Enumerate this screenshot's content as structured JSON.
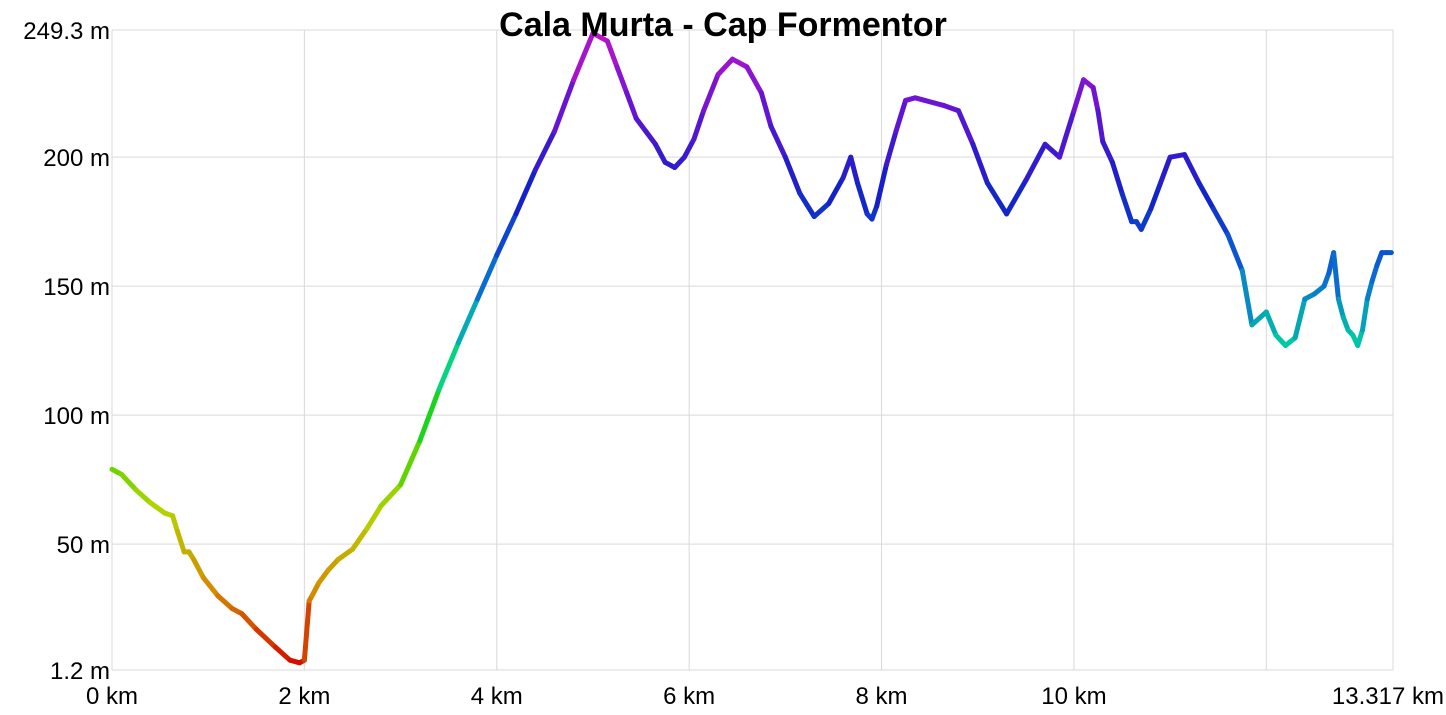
{
  "chart_data": {
    "type": "line",
    "title": "Cala Murta - Cap Formentor",
    "xlabel": "",
    "ylabel": "",
    "x_unit": "km",
    "y_unit": "m",
    "xlim": [
      0,
      13.317
    ],
    "ylim": [
      1.2,
      249.3
    ],
    "x_ticks": [
      {
        "value": 0,
        "label": "0 km"
      },
      {
        "value": 2,
        "label": "2 km"
      },
      {
        "value": 4,
        "label": "4 km"
      },
      {
        "value": 6,
        "label": "6 km"
      },
      {
        "value": 8,
        "label": "8 km"
      },
      {
        "value": 10,
        "label": "10 km"
      },
      {
        "value": 13.317,
        "label": "13.317 km"
      }
    ],
    "x_gridlines": [
      0,
      2,
      4,
      6,
      8,
      10,
      12,
      13.317
    ],
    "y_ticks": [
      {
        "value": 1.2,
        "label": "1.2 m"
      },
      {
        "value": 50,
        "label": "50 m"
      },
      {
        "value": 100,
        "label": "100 m"
      },
      {
        "value": 150,
        "label": "150 m"
      },
      {
        "value": 200,
        "label": "200 m"
      },
      {
        "value": 249.3,
        "label": "249.3 m"
      }
    ],
    "grid": true,
    "legend": "none",
    "color_by": "elevation",
    "color_scale": [
      "#d40000",
      "#d48a00",
      "#b4d400",
      "#22d400",
      "#00d4a0",
      "#0a64d4",
      "#1420c8",
      "#6414d4",
      "#c814c8"
    ],
    "series": [
      {
        "x": [
          0,
          0.1,
          0.25,
          0.4,
          0.55,
          0.63,
          0.68,
          0.75,
          0.8,
          0.85,
          0.95,
          1.1,
          1.25,
          1.35,
          1.5,
          1.7,
          1.85,
          1.95,
          2.0,
          2.05,
          2.08,
          2.15,
          2.25,
          2.35,
          2.5,
          2.65,
          2.8,
          3.0,
          3.2,
          3.4,
          3.6,
          3.8,
          4.0,
          4.2,
          4.4,
          4.6,
          4.8,
          5.0,
          5.15,
          5.25,
          5.35,
          5.45,
          5.55,
          5.65,
          5.75,
          5.85,
          5.95,
          6.05,
          6.15,
          6.3,
          6.45,
          6.6,
          6.75,
          6.85,
          7.0,
          7.15,
          7.3,
          7.45,
          7.6,
          7.68,
          7.75,
          7.85,
          7.9,
          7.95,
          8.05,
          8.15,
          8.25,
          8.35,
          8.45,
          8.55,
          8.65,
          8.8,
          8.95,
          9.1,
          9.3,
          9.5,
          9.7,
          9.85,
          10.0,
          10.1,
          10.2,
          10.25,
          10.3,
          10.4,
          10.5,
          10.6,
          10.65,
          10.7,
          10.8,
          10.9,
          11.0,
          11.15,
          11.3,
          11.45,
          11.6,
          11.75,
          11.85,
          12.0,
          12.1,
          12.2,
          12.3,
          12.4,
          12.5,
          12.6,
          12.65,
          12.7,
          12.75,
          12.8,
          12.85,
          12.9,
          12.95,
          13.0,
          13.05,
          13.1,
          13.15,
          13.2,
          13.25,
          13.3
        ],
        "y": [
          79,
          77,
          71,
          66,
          62,
          61,
          55,
          47,
          47,
          44,
          37,
          30,
          25,
          23,
          17,
          10,
          5,
          4,
          5,
          28,
          30,
          35,
          40,
          44,
          48,
          56,
          65,
          73,
          90,
          110,
          128,
          145,
          162,
          178,
          195,
          210,
          230,
          248,
          245,
          235,
          225,
          215,
          210,
          205,
          198,
          196,
          200,
          207,
          218,
          232,
          238,
          235,
          225,
          212,
          200,
          186,
          177,
          182,
          192,
          200,
          190,
          178,
          176,
          181,
          197,
          210,
          222,
          223,
          222,
          221,
          220,
          218,
          205,
          190,
          178,
          191,
          205,
          200,
          218,
          230,
          227,
          218,
          206,
          198,
          186,
          175,
          175,
          172,
          180,
          190,
          200,
          201,
          190,
          180,
          170,
          156,
          135,
          140,
          131,
          127,
          130,
          145,
          147,
          150,
          155,
          163,
          145,
          138,
          133,
          131,
          127,
          133,
          145,
          152,
          158,
          163,
          163,
          163
        ]
      }
    ]
  }
}
